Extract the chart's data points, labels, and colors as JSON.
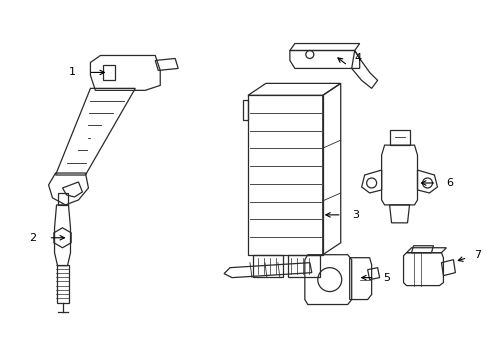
{
  "background_color": "#ffffff",
  "line_color": "#2a2a2a",
  "label_color": "#000000",
  "figure_width": 4.89,
  "figure_height": 3.6,
  "dpi": 100
}
